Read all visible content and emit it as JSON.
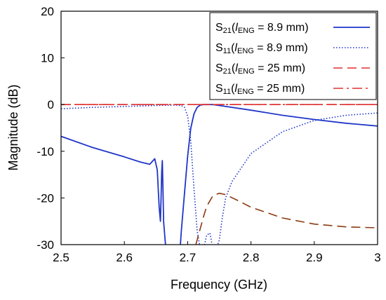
{
  "chart_data": {
    "type": "line",
    "title": "",
    "xlabel": "Frequency (GHz)",
    "ylabel": "Magnitude (dB)",
    "xlim": [
      2.5,
      3.0
    ],
    "ylim": [
      -30,
      20
    ],
    "xticks": [
      "2.5",
      "2.6",
      "2.7",
      "2.8",
      "2.9",
      "3"
    ],
    "yticks": [
      "20",
      "10",
      "0",
      "-10",
      "-20",
      "-30"
    ],
    "grid": false,
    "legend_position": "top-right",
    "series": [
      {
        "name": "S21(lENG = 8.9 mm)",
        "legend": {
          "param": "S",
          "sub": "21",
          "italic": "l",
          "italic_sub": "ENG",
          "rest": " = 8.9 mm)"
        },
        "color": "#1f35c8",
        "style": "solid",
        "x": [
          2.5,
          2.55,
          2.6,
          2.625,
          2.64,
          2.648,
          2.652,
          2.655,
          2.657,
          2.658,
          2.659,
          2.66,
          2.661,
          2.662,
          2.665,
          2.668,
          2.688,
          2.69,
          2.695,
          2.7,
          2.705,
          2.71,
          2.715,
          2.72,
          2.725,
          2.73,
          2.74,
          2.75,
          2.8,
          2.85,
          2.9,
          2.95,
          3.0
        ],
        "y": [
          -6.8,
          -9.2,
          -11.2,
          -12.3,
          -12.8,
          -11.6,
          -14.0,
          -22.0,
          -25.0,
          -20.0,
          -14.5,
          -12.0,
          -18.0,
          -25.0,
          -30.0,
          -31.0,
          -31.0,
          -27.0,
          -19.0,
          -11.0,
          -5.0,
          -2.0,
          -0.6,
          -0.1,
          0.0,
          0.0,
          0.0,
          -0.2,
          -1.2,
          -2.3,
          -3.2,
          -4.0,
          -4.6
        ]
      },
      {
        "name": "S11(lENG = 8.9 mm)",
        "legend": {
          "param": "S",
          "sub": "11",
          "italic": "l",
          "italic_sub": "ENG",
          "rest": " = 8.9 mm)"
        },
        "color": "#1f35c8",
        "style": "dotted",
        "x": [
          2.5,
          2.55,
          2.6,
          2.65,
          2.68,
          2.69,
          2.695,
          2.7,
          2.705,
          2.71,
          2.715,
          2.72,
          2.725,
          2.73,
          2.735,
          2.74,
          2.745,
          2.75,
          2.755,
          2.76,
          2.77,
          2.8,
          2.85,
          2.9,
          2.95,
          3.0
        ],
        "y": [
          -0.9,
          -0.6,
          -0.4,
          -0.2,
          -0.1,
          -0.2,
          -0.6,
          -2.5,
          -8.0,
          -18.0,
          -27.0,
          -31.0,
          -31.0,
          -28.0,
          -27.5,
          -31.0,
          -31.0,
          -29.0,
          -24.0,
          -20.0,
          -16.5,
          -10.5,
          -5.8,
          -3.4,
          -2.3,
          -1.8
        ]
      },
      {
        "name": "S21(lENG = 25 mm)",
        "legend": {
          "param": "S",
          "sub": "21",
          "italic": "l",
          "italic_sub": "ENG",
          "rest": " = 25 mm)"
        },
        "color": "#e03030",
        "style": "dashed",
        "x": [
          2.5,
          2.6,
          2.7,
          2.8,
          2.9,
          3.0
        ],
        "y": [
          0,
          0,
          0,
          0,
          0,
          0
        ]
      },
      {
        "name": "S11(lENG = 25 mm)",
        "legend": {
          "param": "S",
          "sub": "11",
          "italic": "l",
          "italic_sub": "ENG",
          "rest": " = 25 mm)"
        },
        "color": "#e03030",
        "style": "dashdot",
        "x": [
          2.5,
          2.6,
          2.7,
          2.8,
          2.9,
          3.0
        ],
        "y": [
          0,
          0,
          0,
          0,
          0,
          0
        ]
      },
      {
        "name": "",
        "color": "#8b3a12",
        "style": "dashed",
        "x": [
          2.713,
          2.718,
          2.725,
          2.73,
          2.74,
          2.75,
          2.76,
          2.78,
          2.8,
          2.85,
          2.9,
          2.95,
          3.0
        ],
        "y": [
          -30.0,
          -27.5,
          -24.0,
          -21.8,
          -19.5,
          -19.0,
          -19.3,
          -20.6,
          -22.0,
          -24.3,
          -25.6,
          -26.2,
          -26.4
        ]
      }
    ]
  }
}
